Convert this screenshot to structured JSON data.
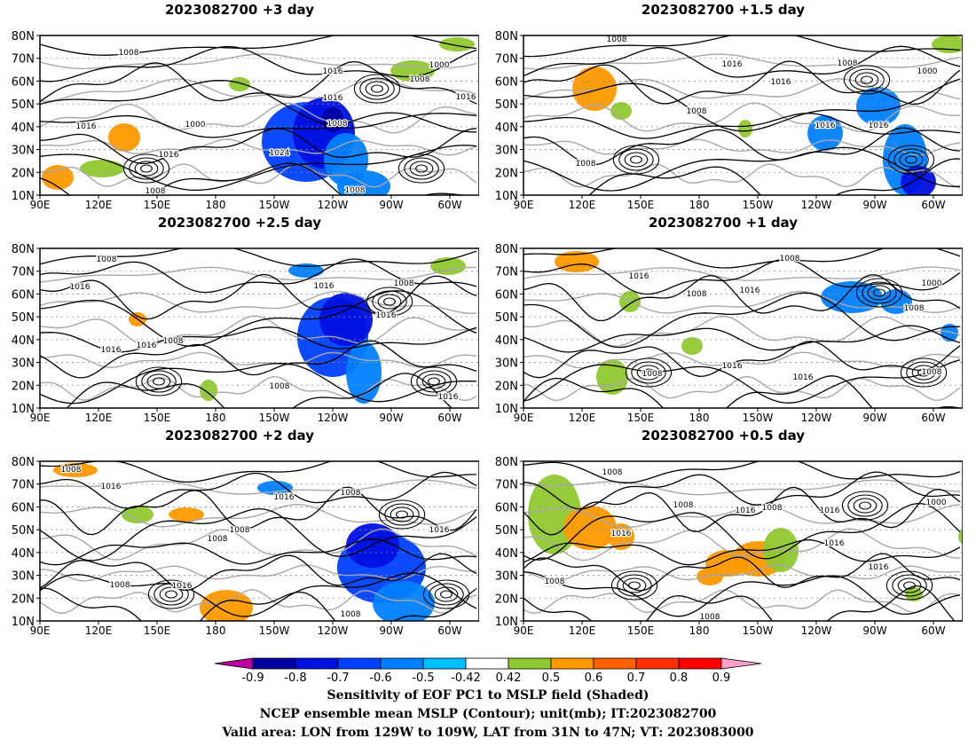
{
  "panels": [
    {
      "id": "p1",
      "title": "2023082700  +3  day"
    },
    {
      "id": "p2",
      "title": "2023082700  +1.5  day"
    },
    {
      "id": "p3",
      "title": "2023082700  +2.5  day"
    },
    {
      "id": "p4",
      "title": "2023082700  +1  day"
    },
    {
      "id": "p5",
      "title": "2023082700  +2  day"
    },
    {
      "id": "p6",
      "title": "2023082700  +0.5  day"
    }
  ],
  "lat_labels": [
    "80N",
    "70N",
    "60N",
    "50N",
    "40N",
    "30N",
    "20N",
    "10N"
  ],
  "lon_labels": [
    "90E",
    "120E",
    "150E",
    "180",
    "150W",
    "120W",
    "90W",
    "60W"
  ],
  "contour_labels": {
    "p1": [
      "1008",
      "1016",
      "1008",
      "1000",
      "1016",
      "1016",
      "1000",
      "1016",
      "1024",
      "1008",
      "1016",
      "1008",
      "1008"
    ],
    "p2": [
      "1008",
      "1016",
      "1008",
      "1000",
      "1016",
      "1008",
      "1016",
      "1016",
      "1008"
    ],
    "p3": [
      "1008",
      "1016",
      "1016",
      "1008",
      "1008",
      "1016",
      "1016",
      "1008",
      "1016",
      "1016"
    ],
    "p4": [
      "1008",
      "1016",
      "1008",
      "1016",
      "1000",
      "1008",
      "1016",
      "1016",
      "1016",
      "1008",
      "1008"
    ],
    "p5": [
      "1008",
      "1016",
      "1016",
      "1008",
      "1008",
      "1008",
      "1016",
      "1016",
      "1008",
      "1008"
    ],
    "p6": [
      "1008",
      "1016",
      "1008",
      "1016",
      "1008",
      "1016",
      "1000",
      "1016",
      "1016",
      "1008",
      "1008"
    ]
  },
  "colorbar": {
    "ticks": [
      "-0.9",
      "-0.8",
      "-0.7",
      "-0.6",
      "-0.5",
      "-0.42",
      "0.42",
      "0.5",
      "0.6",
      "0.7",
      "0.8",
      "0.9"
    ],
    "colors": [
      "#c000a0",
      "#0000a0",
      "#0010e0",
      "#0040ff",
      "#0080ff",
      "#00c0ff",
      "#ffffff",
      "#90c830",
      "#ff9900",
      "#ff6000",
      "#ff3000",
      "#ff0000",
      "#ffa0c8"
    ]
  },
  "footer": {
    "line1": "Sensitivity of EOF PC1 to MSLP field (Shaded)",
    "line2": "NCEP ensemble mean MSLP (Contour); unit(mb); IT:2023082700",
    "line3": "Valid area: LON from 129W to 109W, LAT from 31N to 47N; VT: 2023083000"
  }
}
